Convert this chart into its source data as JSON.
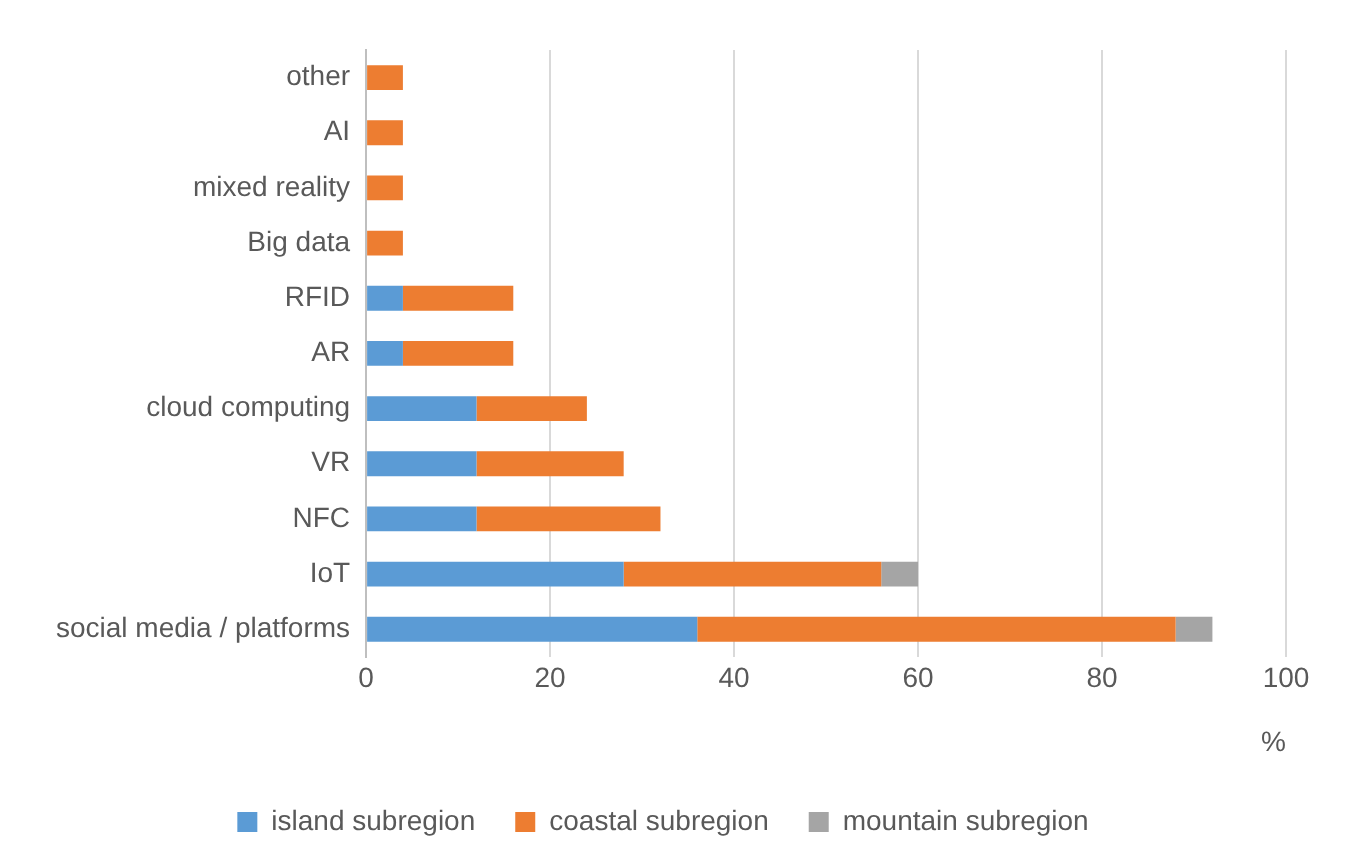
{
  "chart_data": {
    "type": "bar",
    "orientation": "horizontal",
    "stacked": true,
    "xlabel": "%",
    "categories": [
      "other",
      "AI",
      "mixed reality",
      "Big data",
      "RFID",
      "AR",
      "cloud computing",
      "VR",
      "NFC",
      "IoT",
      "social media / platforms"
    ],
    "series": [
      {
        "name": "island subregion",
        "color": "#5b9bd5",
        "values": [
          0,
          0,
          0,
          0,
          4,
          4,
          12,
          12,
          12,
          28,
          36
        ]
      },
      {
        "name": "coastal subregion",
        "color": "#ed7d31",
        "values": [
          4,
          4,
          4,
          4,
          12,
          12,
          12,
          16,
          20,
          28,
          52
        ]
      },
      {
        "name": "mountain subregion",
        "color": "#a5a5a5",
        "values": [
          0,
          0,
          0,
          0,
          0,
          0,
          0,
          0,
          0,
          4,
          4
        ]
      }
    ],
    "xlim": [
      0,
      100
    ],
    "xticks": [
      0,
      20,
      40,
      60,
      80,
      100
    ],
    "grid": "x",
    "legend": "bottom"
  }
}
